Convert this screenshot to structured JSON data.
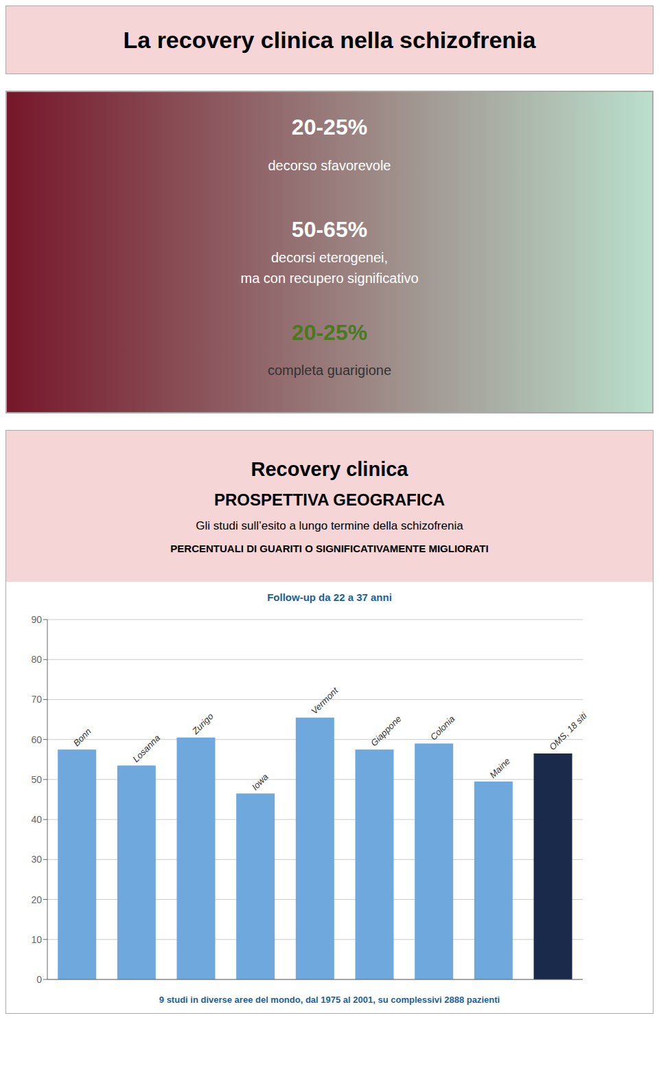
{
  "chart_data": {
    "type": "bar",
    "title": "La recovery clinica nella schizofrenia",
    "annotations": [
      {
        "text": "20-25%",
        "color": "white"
      },
      {
        "text": "decorso sfavorevole",
        "color": "white"
      },
      {
        "text": "50-65%",
        "color": "white"
      },
      {
        "text": "decorsi eterogenei,\nma con recupero significativo",
        "color": "white"
      },
      {
        "text": "20-25%",
        "color": "#4a7a20"
      },
      {
        "text": "completa guarigione",
        "color": "#333333"
      },
      {
        "text": "Recovery clinica"
      },
      {
        "text": "PROSPETTIVA GEOGRAFICA"
      },
      {
        "text": "Gli studi sull’esito a lungo termine della schizofrenia"
      },
      {
        "text": "PERCENTUALI DI GUARITI O SIGNIFICATIVAMENTE MIGLIORATI"
      },
      {
        "text": "Follow-up da 22 a 37 anni",
        "color": "#1a5fa0"
      },
      {
        "text": "9 studi in diverse aree del mondo, dal 1975 al 2001, su complessivi 2888 pazienti",
        "color": "#1a5fa0"
      }
    ],
    "categories": [
      "Bonn",
      "Losanna",
      "Zurigo",
      "Iowa",
      "Vermont",
      "Giappone",
      "Colonia",
      "Maine",
      "OMS, 18 siti"
    ],
    "values": [
      57.5,
      53.5,
      60.5,
      46.5,
      65.5,
      57.5,
      59.0,
      49.5,
      56.5
    ],
    "colors": [
      "#6fa8dc",
      "#6fa8dc",
      "#6fa8dc",
      "#6fa8dc",
      "#6fa8dc",
      "#6fa8dc",
      "#6fa8dc",
      "#6fa8dc",
      "#1a2a4a"
    ],
    "ylim": [
      0,
      90
    ],
    "yticks": [
      0,
      10,
      20,
      30,
      40,
      50,
      60,
      70,
      80,
      90
    ],
    "grid": true,
    "tick_labels": "y"
  }
}
